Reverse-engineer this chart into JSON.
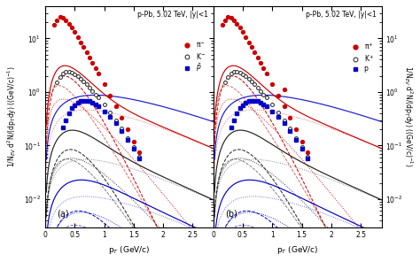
{
  "title": "p-Pb, 5.02 TeV, |y|<1",
  "xlabel": "p$_{T}$ (GeV/c)",
  "ylabel": "1/N$_{EV}$ d$^{2}$N/(dp$_{T}$dy) ((GeV/c)$^{-1}$",
  "legend_a": [
    "π$^{-}$",
    "K$^{-}$",
    "$\\bar{p}$"
  ],
  "legend_b": [
    "π$^{+}$",
    "K$^{+}$",
    "p"
  ],
  "panel_a": "(a)",
  "panel_b": "(b)",
  "colors": {
    "pi": "#cc0000",
    "K": "#222222",
    "p": "#0000cc"
  },
  "pi_a_pt": [
    0.15,
    0.2,
    0.25,
    0.3,
    0.35,
    0.4,
    0.45,
    0.5,
    0.55,
    0.6,
    0.65,
    0.7,
    0.75,
    0.8,
    0.85,
    0.9,
    1.0,
    1.1,
    1.2,
    1.3,
    1.4,
    1.5,
    1.6
  ],
  "pi_a_y": [
    18,
    22,
    25,
    24,
    22,
    19,
    16,
    13,
    10.5,
    8.5,
    7.0,
    5.5,
    4.4,
    3.5,
    2.8,
    2.2,
    1.4,
    0.87,
    0.54,
    0.33,
    0.2,
    0.12,
    0.075
  ],
  "K_a_pt": [
    0.2,
    0.25,
    0.3,
    0.35,
    0.4,
    0.45,
    0.5,
    0.55,
    0.6,
    0.65,
    0.7,
    0.75,
    0.8,
    0.85,
    0.9,
    1.0,
    1.1,
    1.2,
    1.3,
    1.4,
    1.5,
    1.6
  ],
  "K_a_y": [
    1.5,
    1.9,
    2.2,
    2.4,
    2.4,
    2.3,
    2.1,
    1.95,
    1.75,
    1.58,
    1.4,
    1.22,
    1.05,
    0.9,
    0.78,
    0.58,
    0.42,
    0.3,
    0.21,
    0.14,
    0.096,
    0.063
  ],
  "p_a_pt": [
    0.3,
    0.35,
    0.4,
    0.45,
    0.5,
    0.55,
    0.6,
    0.65,
    0.7,
    0.75,
    0.8,
    0.85,
    0.9,
    1.0,
    1.1,
    1.2,
    1.3,
    1.4,
    1.5,
    1.6
  ],
  "p_a_y": [
    0.22,
    0.3,
    0.4,
    0.5,
    0.57,
    0.63,
    0.67,
    0.69,
    0.68,
    0.67,
    0.63,
    0.59,
    0.54,
    0.44,
    0.34,
    0.26,
    0.19,
    0.13,
    0.088,
    0.058
  ],
  "pi_b_pt": [
    0.15,
    0.2,
    0.25,
    0.3,
    0.35,
    0.4,
    0.45,
    0.5,
    0.55,
    0.6,
    0.65,
    0.7,
    0.75,
    0.8,
    0.85,
    0.9,
    1.0,
    1.1,
    1.2,
    1.3,
    1.4,
    1.5,
    1.6,
    1.2
  ],
  "pi_b_y": [
    18,
    22,
    25,
    24,
    22,
    19,
    16,
    13,
    10.5,
    8.5,
    7.0,
    5.5,
    4.4,
    3.5,
    2.8,
    2.2,
    1.4,
    0.87,
    0.54,
    0.33,
    0.2,
    0.12,
    0.075,
    1.1
  ],
  "K_b_pt": [
    0.2,
    0.25,
    0.3,
    0.35,
    0.4,
    0.45,
    0.5,
    0.55,
    0.6,
    0.65,
    0.7,
    0.75,
    0.8,
    0.85,
    0.9,
    1.0,
    1.1,
    1.2,
    1.3,
    1.4,
    1.5,
    1.6
  ],
  "K_b_y": [
    1.5,
    1.9,
    2.2,
    2.4,
    2.4,
    2.3,
    2.1,
    1.95,
    1.75,
    1.58,
    1.4,
    1.22,
    1.05,
    0.9,
    0.78,
    0.58,
    0.42,
    0.3,
    0.21,
    0.14,
    0.096,
    0.063
  ],
  "p_b_pt": [
    0.3,
    0.35,
    0.4,
    0.45,
    0.5,
    0.55,
    0.6,
    0.65,
    0.7,
    0.75,
    0.8,
    0.85,
    0.9,
    1.0,
    1.1,
    1.2,
    1.3,
    1.4,
    1.5,
    1.6
  ],
  "p_b_y": [
    0.22,
    0.3,
    0.4,
    0.5,
    0.57,
    0.63,
    0.67,
    0.69,
    0.68,
    0.67,
    0.63,
    0.59,
    0.54,
    0.44,
    0.34,
    0.26,
    0.19,
    0.13,
    0.088,
    0.058
  ],
  "ylim": [
    0.003,
    40
  ],
  "xlim": [
    0,
    2.85
  ]
}
